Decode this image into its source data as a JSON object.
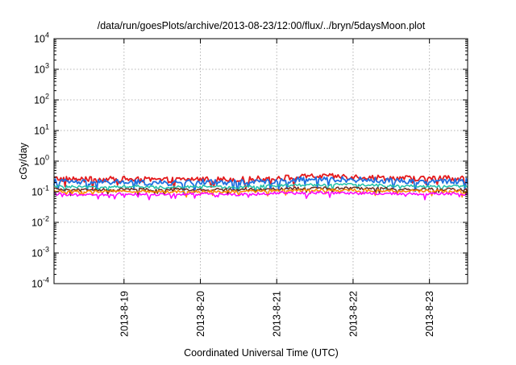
{
  "chart_data": {
    "type": "line",
    "title": "/data/run/goesPlots/archive/2013-08-23/12:00/flux/../bryn/5daysMoon.plot",
    "xlabel": "Coordinated Universal Time (UTC)",
    "ylabel": "cGy/day",
    "yscale": "log",
    "ylim": [
      0.0001,
      10000
    ],
    "xlim": [
      "2013-08-18 02:00",
      "2013-08-23 12:00"
    ],
    "grid": true,
    "legend": "none",
    "y_ticks": [
      {
        "value": 0.0001,
        "base": "10",
        "exp": "-4"
      },
      {
        "value": 0.001,
        "base": "10",
        "exp": "-3"
      },
      {
        "value": 0.01,
        "base": "10",
        "exp": "-2"
      },
      {
        "value": 0.1,
        "base": "10",
        "exp": "-1"
      },
      {
        "value": 1,
        "base": "10",
        "exp": "0"
      },
      {
        "value": 10,
        "base": "10",
        "exp": "1"
      },
      {
        "value": 100,
        "base": "10",
        "exp": "2"
      },
      {
        "value": 1000,
        "base": "10",
        "exp": "3"
      },
      {
        "value": 10000,
        "base": "10",
        "exp": "4"
      }
    ],
    "x_ticks": [
      {
        "value": "2013-08-19",
        "label": "2013-8-19"
      },
      {
        "value": "2013-08-20",
        "label": "2013-8-20"
      },
      {
        "value": "2013-08-21",
        "label": "2013-8-21"
      },
      {
        "value": "2013-08-22",
        "label": "2013-8-22"
      },
      {
        "value": "2013-08-23",
        "label": "2013-8-23"
      }
    ],
    "series": [
      {
        "color": "#e41a1c",
        "x": [
          "2013-08-18 02:00",
          "2013-08-18 12:00",
          "2013-08-19 00:00",
          "2013-08-19 12:00",
          "2013-08-20 00:00",
          "2013-08-20 12:00",
          "2013-08-21 00:00",
          "2013-08-21 12:00",
          "2013-08-22 00:00",
          "2013-08-22 12:00",
          "2013-08-23 00:00",
          "2013-08-23 12:00"
        ],
        "values": [
          0.27,
          0.25,
          0.26,
          0.24,
          0.26,
          0.25,
          0.28,
          0.32,
          0.31,
          0.28,
          0.27,
          0.28
        ]
      },
      {
        "color": "#1f6fe0",
        "x": [
          "2013-08-18 02:00",
          "2013-08-18 12:00",
          "2013-08-19 00:00",
          "2013-08-19 12:00",
          "2013-08-20 00:00",
          "2013-08-20 12:00",
          "2013-08-21 00:00",
          "2013-08-21 12:00",
          "2013-08-22 00:00",
          "2013-08-22 12:00",
          "2013-08-23 00:00",
          "2013-08-23 12:00"
        ],
        "values": [
          0.22,
          0.2,
          0.21,
          0.19,
          0.21,
          0.2,
          0.23,
          0.26,
          0.25,
          0.23,
          0.22,
          0.22
        ]
      },
      {
        "color": "#20c0a8",
        "x": [
          "2013-08-18 02:00",
          "2013-08-18 12:00",
          "2013-08-19 00:00",
          "2013-08-19 12:00",
          "2013-08-20 00:00",
          "2013-08-20 12:00",
          "2013-08-21 00:00",
          "2013-08-21 12:00",
          "2013-08-22 00:00",
          "2013-08-22 12:00",
          "2013-08-23 00:00",
          "2013-08-23 12:00"
        ],
        "values": [
          0.15,
          0.14,
          0.15,
          0.14,
          0.15,
          0.14,
          0.16,
          0.17,
          0.17,
          0.16,
          0.15,
          0.15
        ]
      },
      {
        "color": "#6b2a1f",
        "x": [
          "2013-08-18 02:00",
          "2013-08-18 12:00",
          "2013-08-19 00:00",
          "2013-08-19 12:00",
          "2013-08-20 00:00",
          "2013-08-20 12:00",
          "2013-08-21 00:00",
          "2013-08-21 12:00",
          "2013-08-22 00:00",
          "2013-08-22 12:00",
          "2013-08-23 00:00",
          "2013-08-23 12:00"
        ],
        "values": [
          0.12,
          0.115,
          0.12,
          0.115,
          0.12,
          0.115,
          0.125,
          0.13,
          0.13,
          0.125,
          0.12,
          0.12
        ]
      },
      {
        "color": "#ff8c00",
        "x": [
          "2013-08-18 02:00",
          "2013-08-18 12:00",
          "2013-08-19 00:00",
          "2013-08-19 12:00",
          "2013-08-20 00:00",
          "2013-08-20 12:00",
          "2013-08-21 00:00",
          "2013-08-21 12:00",
          "2013-08-22 00:00",
          "2013-08-22 12:00",
          "2013-08-23 00:00",
          "2013-08-23 12:00"
        ],
        "values": [
          0.105,
          0.1,
          0.105,
          0.1,
          0.105,
          0.1,
          0.11,
          0.115,
          0.112,
          0.108,
          0.105,
          0.105
        ]
      },
      {
        "color": "#ff00ff",
        "x": [
          "2013-08-18 02:00",
          "2013-08-18 12:00",
          "2013-08-19 00:00",
          "2013-08-19 12:00",
          "2013-08-20 00:00",
          "2013-08-20 12:00",
          "2013-08-21 00:00",
          "2013-08-21 12:00",
          "2013-08-22 00:00",
          "2013-08-22 12:00",
          "2013-08-23 00:00",
          "2013-08-23 12:00"
        ],
        "values": [
          0.085,
          0.08,
          0.085,
          0.08,
          0.085,
          0.08,
          0.09,
          0.093,
          0.09,
          0.087,
          0.085,
          0.085
        ]
      }
    ]
  }
}
